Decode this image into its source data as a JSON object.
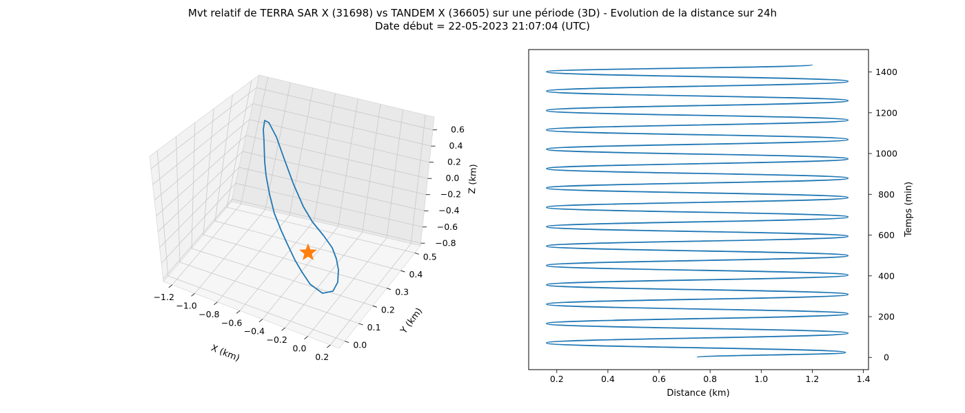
{
  "figure": {
    "title_line1": "Mvt relatif de TERRA SAR X (31698) vs TANDEM X (36605) sur une période (3D) - Evolution de la distance sur 24h",
    "title_line2": "Date début = 22-05-2023 21:07:04 (UTC)"
  },
  "chart_data": [
    {
      "type": "line3d",
      "xlabel": "X (km)",
      "ylabel": "Y (km)",
      "zlabel": "Z (km)",
      "x_ticks": [
        "−1.2",
        "−1.0",
        "−0.8",
        "−0.6",
        "−0.4",
        "−0.2",
        "0.0",
        "0.2"
      ],
      "y_ticks": [
        "0.0",
        "0.1",
        "0.2",
        "0.3",
        "0.4",
        "0.5"
      ],
      "z_ticks": [
        "0.6",
        "0.4",
        "0.2",
        "0.0",
        "−0.2",
        "−0.4",
        "−0.6",
        "−0.8"
      ],
      "line_color": "#1f77b4",
      "marker": {
        "shape": "star",
        "color": "#ff7f0e",
        "x": 0.0,
        "y": 0.0,
        "z": 0.0
      }
    },
    {
      "type": "line",
      "xlabel": "Distance (km)",
      "ylabel": "Temps (min)",
      "xlim": [
        0.09,
        1.42
      ],
      "ylim": [
        -60,
        1510
      ],
      "x_ticks": [
        0.2,
        0.4,
        0.6,
        0.8,
        1.0,
        1.2,
        1.4
      ],
      "x_tick_labels": [
        "0.2",
        "0.4",
        "0.6",
        "0.8",
        "1.0",
        "1.2",
        "1.4"
      ],
      "y_ticks": [
        0,
        200,
        400,
        600,
        800,
        1000,
        1200,
        1400
      ],
      "y_tick_labels": [
        "0",
        "200",
        "400",
        "600",
        "800",
        "1000",
        "1200",
        "1400"
      ],
      "line_color": "#1f77b4",
      "series": [
        {
          "points": [
            [
              0.75,
              0
            ],
            [
              1.33,
              24
            ],
            [
              0.16,
              71
            ],
            [
              1.34,
              119
            ],
            [
              0.16,
              166
            ],
            [
              1.34,
              214
            ],
            [
              0.16,
              261
            ],
            [
              1.34,
              309
            ],
            [
              0.16,
              356
            ],
            [
              1.34,
              404
            ],
            [
              0.16,
              451
            ],
            [
              1.34,
              499
            ],
            [
              0.16,
              546
            ],
            [
              1.34,
              594
            ],
            [
              0.16,
              641
            ],
            [
              1.34,
              689
            ],
            [
              0.16,
              736
            ],
            [
              1.34,
              784
            ],
            [
              0.16,
              831
            ],
            [
              1.34,
              879
            ],
            [
              0.16,
              926
            ],
            [
              1.34,
              974
            ],
            [
              0.16,
              1021
            ],
            [
              1.34,
              1069
            ],
            [
              0.16,
              1116
            ],
            [
              1.34,
              1164
            ],
            [
              0.16,
              1211
            ],
            [
              1.34,
              1259
            ],
            [
              0.16,
              1306
            ],
            [
              1.34,
              1354
            ],
            [
              0.16,
              1401
            ],
            [
              1.2,
              1436
            ]
          ]
        }
      ]
    }
  ]
}
